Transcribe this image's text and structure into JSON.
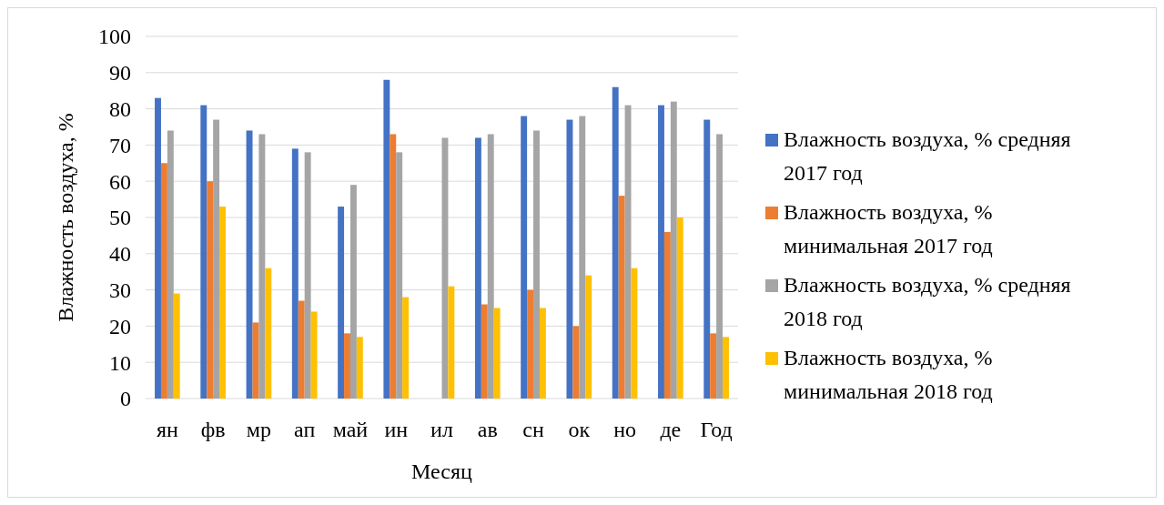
{
  "chart_data": {
    "type": "bar",
    "xlabel": "Месяц",
    "ylabel": "Влажность воздуха, %",
    "categories": [
      "ян",
      "фв",
      "мр",
      "ап",
      "май",
      "ин",
      "ил",
      "ав",
      "сн",
      "ок",
      "но",
      "де",
      "Год"
    ],
    "series": [
      {
        "name": "Влажность воздуха, % средняя 2017 год",
        "color": "#4472c4",
        "values": [
          83,
          81,
          74,
          69,
          53,
          88,
          null,
          72,
          78,
          77,
          86,
          81,
          77
        ]
      },
      {
        "name": "Влажность воздуха, % минимальная 2017 год",
        "color": "#ed7d31",
        "values": [
          65,
          60,
          21,
          27,
          18,
          73,
          null,
          26,
          30,
          20,
          56,
          46,
          18
        ]
      },
      {
        "name": "Влажность воздуха, % средняя 2018 год",
        "color": "#a5a5a5",
        "values": [
          74,
          77,
          73,
          68,
          59,
          68,
          72,
          73,
          74,
          78,
          81,
          82,
          73
        ]
      },
      {
        "name": "Влажность воздуха, % минимальная 2018 год",
        "color": "#ffc000",
        "values": [
          29,
          53,
          36,
          24,
          17,
          28,
          31,
          25,
          25,
          34,
          36,
          50,
          17
        ]
      }
    ],
    "ylim": [
      0,
      100
    ],
    "yticks": [
      0,
      10,
      20,
      30,
      40,
      50,
      60,
      70,
      80,
      90,
      100
    ],
    "grid": "y",
    "legend": "right"
  }
}
